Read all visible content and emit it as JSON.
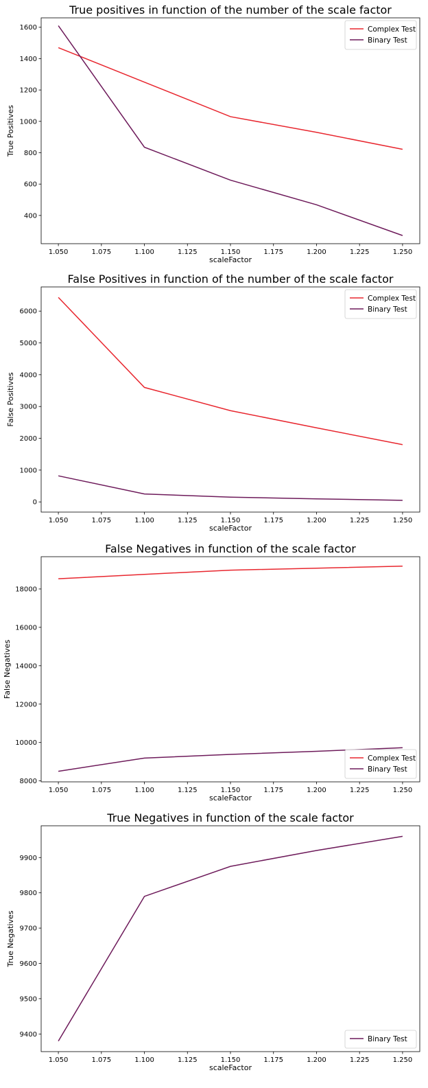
{
  "chart_data": [
    {
      "type": "line",
      "title": "True positives in function of the number of the scale factor",
      "xlabel": "scaleFactor",
      "ylabel": "True Positives",
      "x": [
        1.05,
        1.1,
        1.15,
        1.2,
        1.25
      ],
      "xlim": [
        1.04,
        1.26
      ],
      "ylim": [
        220,
        1660
      ],
      "xticks": [
        "1.050",
        "1.075",
        "1.100",
        "1.125",
        "1.150",
        "1.175",
        "1.200",
        "1.225",
        "1.250"
      ],
      "yticks": [
        "400",
        "600",
        "800",
        "1000",
        "1200",
        "1400",
        "1600"
      ],
      "grid": false,
      "legend_position": "top-right",
      "series": [
        {
          "name": "Complex Test",
          "color": "#e8262e",
          "values": [
            1470,
            1250,
            1030,
            930,
            822
          ]
        },
        {
          "name": "Binary Test",
          "color": "#6d1a5a",
          "values": [
            1610,
            835,
            625,
            468,
            272
          ]
        }
      ]
    },
    {
      "type": "line",
      "title": "False Positives in function of the number of the scale factor",
      "xlabel": "scaleFactor",
      "ylabel": "False Positives",
      "x": [
        1.05,
        1.1,
        1.15,
        1.2,
        1.25
      ],
      "xlim": [
        1.04,
        1.26
      ],
      "ylim": [
        -320,
        6760
      ],
      "xticks": [
        "1.050",
        "1.075",
        "1.100",
        "1.125",
        "1.150",
        "1.175",
        "1.200",
        "1.225",
        "1.250"
      ],
      "yticks": [
        "0",
        "1000",
        "2000",
        "3000",
        "4000",
        "5000",
        "6000"
      ],
      "grid": false,
      "legend_position": "top-right",
      "series": [
        {
          "name": "Complex Test",
          "color": "#e8262e",
          "values": [
            6430,
            3600,
            2870,
            2330,
            1800
          ]
        },
        {
          "name": "Binary Test",
          "color": "#6d1a5a",
          "values": [
            820,
            250,
            150,
            95,
            50
          ]
        }
      ]
    },
    {
      "type": "line",
      "title": "False Negatives in function of the scale factor",
      "xlabel": "scaleFactor",
      "ylabel": "False Negatives",
      "x": [
        1.05,
        1.1,
        1.15,
        1.2,
        1.25
      ],
      "xlim": [
        1.04,
        1.26
      ],
      "ylim": [
        7950,
        19680
      ],
      "xticks": [
        "1.050",
        "1.075",
        "1.100",
        "1.125",
        "1.150",
        "1.175",
        "1.200",
        "1.225",
        "1.250"
      ],
      "yticks": [
        "8000",
        "10000",
        "12000",
        "14000",
        "16000",
        "18000"
      ],
      "grid": false,
      "legend_position": "bottom-right",
      "series": [
        {
          "name": "Complex Test",
          "color": "#e8262e",
          "values": [
            18530,
            18760,
            18980,
            19080,
            19190
          ]
        },
        {
          "name": "Binary Test",
          "color": "#6d1a5a",
          "values": [
            8500,
            9190,
            9380,
            9540,
            9730
          ]
        }
      ]
    },
    {
      "type": "line",
      "title": "True Negatives in function of the scale factor",
      "xlabel": "scaleFactor",
      "ylabel": "True Negatives",
      "x": [
        1.05,
        1.1,
        1.15,
        1.2,
        1.25
      ],
      "xlim": [
        1.04,
        1.26
      ],
      "ylim": [
        9350,
        9990
      ],
      "xticks": [
        "1.050",
        "1.075",
        "1.100",
        "1.125",
        "1.150",
        "1.175",
        "1.200",
        "1.225",
        "1.250"
      ],
      "yticks": [
        "9400",
        "9500",
        "9600",
        "9700",
        "9800",
        "9900"
      ],
      "grid": false,
      "legend_position": "bottom-right",
      "series": [
        {
          "name": "Binary Test",
          "color": "#6d1a5a",
          "values": [
            9380,
            9790,
            9875,
            9920,
            9960
          ]
        }
      ]
    }
  ]
}
